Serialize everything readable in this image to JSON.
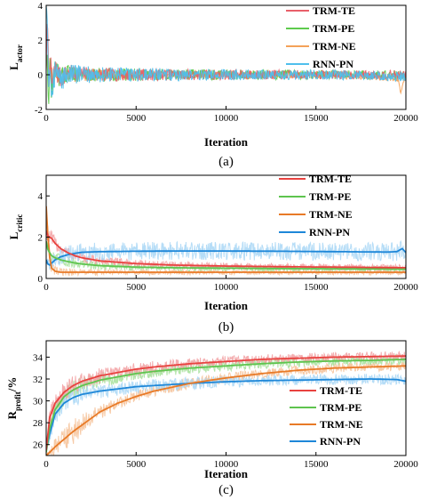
{
  "chart_data": [
    {
      "type": "line",
      "panel_label": "(a)",
      "xlabel": "Iteration",
      "ylabel_main": "L",
      "ylabel_sub": "actor",
      "ylabel_suffix": "",
      "xlim": [
        0,
        20000
      ],
      "ylim": [
        -2,
        4
      ],
      "xticks": [
        "0",
        "5000",
        "10000",
        "15000",
        "20000"
      ],
      "xtick_values": [
        0,
        5000,
        10000,
        15000,
        20000
      ],
      "yticks": [
        "-2",
        "0",
        "2",
        "4"
      ],
      "ytick_values": [
        -2,
        0,
        2,
        4
      ],
      "legend_position": "top-right",
      "noise_order": [
        2,
        1,
        0,
        3
      ],
      "series": [
        {
          "name": "TRM-TE",
          "color": "#e8606a",
          "noise_color": "#e8606a",
          "x": [
            0,
            50,
            100,
            150,
            200,
            300,
            500,
            800,
            1200,
            2000,
            3000,
            5000,
            8000,
            12000,
            16000,
            20000
          ],
          "y": [
            0.3,
            3.0,
            2.5,
            -1.2,
            1.2,
            -0.6,
            0.3,
            -0.2,
            0.1,
            0.05,
            0.0,
            0.0,
            0.0,
            0.0,
            0.0,
            0.0
          ],
          "noise_amp": [
            0.0,
            0.0,
            0.0,
            0.0,
            0.9,
            0.8,
            0.7,
            0.6,
            0.5,
            0.45,
            0.4,
            0.35,
            0.32,
            0.28,
            0.25,
            0.25
          ]
        },
        {
          "name": "TRM-PE",
          "color": "#5ecb4d",
          "noise_color": "#5ecb4d",
          "x": [
            0,
            50,
            100,
            150,
            200,
            300,
            500,
            800,
            1200,
            2000,
            3000,
            5000,
            8000,
            12000,
            16000,
            20000
          ],
          "y": [
            0.5,
            1.5,
            -1.0,
            -1.8,
            0.8,
            -0.8,
            0.2,
            -0.2,
            0.1,
            0.0,
            0.0,
            0.0,
            0.0,
            0.0,
            0.0,
            0.0
          ],
          "noise_amp": [
            0.0,
            0.0,
            0.0,
            0.0,
            0.9,
            0.8,
            0.7,
            0.6,
            0.5,
            0.45,
            0.4,
            0.35,
            0.32,
            0.28,
            0.25,
            0.25
          ]
        },
        {
          "name": "TRM-NE",
          "color": "#f4a259",
          "noise_color": "#f4a259",
          "x": [
            0,
            50,
            100,
            150,
            200,
            300,
            500,
            800,
            1200,
            2000,
            3000,
            5000,
            8000,
            12000,
            16000,
            19600,
            19700,
            20000
          ],
          "y": [
            0.2,
            1.0,
            0.5,
            -0.5,
            0.4,
            -0.3,
            0.2,
            -0.1,
            0.0,
            0.0,
            0.0,
            0.0,
            0.0,
            0.0,
            0.0,
            -0.2,
            -1.1,
            0.0
          ],
          "noise_amp": [
            0.0,
            0.0,
            0.0,
            0.0,
            0.8,
            0.7,
            0.6,
            0.5,
            0.45,
            0.4,
            0.35,
            0.3,
            0.28,
            0.25,
            0.22,
            0.22,
            0.0,
            0.22
          ]
        },
        {
          "name": "RNN-PN",
          "color": "#4fbfec",
          "noise_color": "#4fbfec",
          "x": [
            0,
            50,
            100,
            150,
            200,
            300,
            500,
            800,
            1200,
            2000,
            3000,
            5000,
            8000,
            12000,
            16000,
            20000
          ],
          "y": [
            4.0,
            3.5,
            1.0,
            -1.0,
            0.8,
            -0.8,
            0.3,
            -0.3,
            0.1,
            0.0,
            0.0,
            0.0,
            0.0,
            0.0,
            0.0,
            -0.1
          ],
          "noise_amp": [
            0.0,
            0.0,
            0.0,
            0.0,
            1.0,
            0.9,
            0.8,
            0.7,
            0.6,
            0.5,
            0.45,
            0.4,
            0.35,
            0.3,
            0.28,
            0.28
          ]
        }
      ]
    },
    {
      "type": "line",
      "panel_label": "(b)",
      "xlabel": "Iteration",
      "ylabel_main": "L",
      "ylabel_sub": "critic",
      "ylabel_suffix": "",
      "xlim": [
        0,
        20000
      ],
      "ylim": [
        0,
        5
      ],
      "xticks": [
        "0",
        "5000",
        "10000",
        "15000",
        "20000"
      ],
      "xtick_values": [
        0,
        5000,
        10000,
        15000,
        20000
      ],
      "yticks": [
        "0",
        "2",
        "4"
      ],
      "ytick_values": [
        0,
        2,
        4
      ],
      "legend_position": "top-right",
      "noise_order": [
        2,
        1,
        0,
        3
      ],
      "series": [
        {
          "name": "TRM-TE",
          "color": "#e8423f",
          "noise_color": "#f2a0a2",
          "x": [
            0,
            100,
            300,
            500,
            800,
            1200,
            1600,
            2000,
            3000,
            5000,
            7000,
            10000,
            13000,
            16000,
            20000
          ],
          "y": [
            2.3,
            2.05,
            1.95,
            1.7,
            1.45,
            1.25,
            1.1,
            1.0,
            0.85,
            0.72,
            0.65,
            0.6,
            0.57,
            0.55,
            0.52
          ],
          "noise_amp": [
            0.3,
            0.35,
            0.35,
            0.35,
            0.3,
            0.3,
            0.28,
            0.25,
            0.22,
            0.2,
            0.18,
            0.17,
            0.16,
            0.15,
            0.15
          ]
        },
        {
          "name": "TRM-PE",
          "color": "#5ec44e",
          "noise_color": "#a6e19a",
          "x": [
            0,
            100,
            300,
            500,
            800,
            1200,
            1600,
            2000,
            3000,
            5000,
            7000,
            10000,
            13000,
            16000,
            20000
          ],
          "y": [
            1.8,
            1.4,
            1.1,
            1.0,
            0.9,
            0.82,
            0.75,
            0.7,
            0.62,
            0.55,
            0.52,
            0.5,
            0.48,
            0.47,
            0.45
          ],
          "noise_amp": [
            0.3,
            0.35,
            0.35,
            0.3,
            0.3,
            0.28,
            0.25,
            0.22,
            0.2,
            0.18,
            0.16,
            0.15,
            0.15,
            0.14,
            0.14
          ]
        },
        {
          "name": "TRM-NE",
          "color": "#e87a27",
          "noise_color": "#f6c196",
          "x": [
            0,
            100,
            200,
            300,
            500,
            800,
            1200,
            1600,
            2000,
            3000,
            5000,
            7000,
            10000,
            13000,
            16000,
            20000
          ],
          "y": [
            3.5,
            2.0,
            1.0,
            0.5,
            0.35,
            0.3,
            0.3,
            0.3,
            0.3,
            0.3,
            0.3,
            0.3,
            0.3,
            0.3,
            0.3,
            0.3
          ],
          "noise_amp": [
            0.5,
            0.5,
            0.4,
            0.3,
            0.25,
            0.2,
            0.2,
            0.18,
            0.16,
            0.15,
            0.14,
            0.13,
            0.12,
            0.12,
            0.12,
            0.12
          ]
        },
        {
          "name": "RNN-PN",
          "color": "#1e87d8",
          "noise_color": "#a9d7f6",
          "x": [
            0,
            100,
            200,
            300,
            500,
            800,
            1200,
            1600,
            2000,
            3000,
            5000,
            7000,
            10000,
            13000,
            16000,
            19000,
            19500,
            19800,
            20000
          ],
          "y": [
            0.9,
            0.7,
            0.65,
            0.75,
            0.9,
            1.05,
            1.15,
            1.22,
            1.27,
            1.3,
            1.32,
            1.33,
            1.33,
            1.32,
            1.3,
            1.28,
            1.3,
            1.45,
            1.25
          ],
          "noise_amp": [
            0.2,
            0.25,
            0.3,
            0.35,
            0.4,
            0.45,
            0.45,
            0.45,
            0.45,
            0.45,
            0.45,
            0.45,
            0.45,
            0.45,
            0.45,
            0.45,
            0.45,
            0.45,
            0.4
          ]
        }
      ]
    },
    {
      "type": "line",
      "panel_label": "(c)",
      "xlabel": "Iteration",
      "ylabel_main": "R",
      "ylabel_sub": "profit",
      "ylabel_suffix": "/%",
      "xlim": [
        0,
        20000
      ],
      "ylim": [
        25,
        35.5
      ],
      "xticks": [
        "0",
        "5000",
        "10000",
        "15000",
        "20000"
      ],
      "xtick_values": [
        0,
        5000,
        10000,
        15000,
        20000
      ],
      "yticks": [
        "26",
        "28",
        "30",
        "32",
        "34"
      ],
      "ytick_values": [
        26,
        28,
        30,
        32,
        34
      ],
      "legend_position": "center-right",
      "noise_order": [
        2,
        1,
        0,
        3
      ],
      "series": [
        {
          "name": "TRM-TE",
          "color": "#e8423f",
          "noise_color": "#f2a0a2",
          "x": [
            0,
            200,
            500,
            1000,
            1500,
            2000,
            3000,
            4000,
            5000,
            6000,
            8000,
            10000,
            12000,
            14000,
            16000,
            18000,
            20000
          ],
          "y": [
            25.5,
            28.5,
            29.8,
            30.8,
            31.4,
            31.8,
            32.3,
            32.6,
            32.9,
            33.1,
            33.4,
            33.6,
            33.8,
            33.9,
            34.0,
            34.05,
            34.1
          ],
          "noise_amp": [
            0.3,
            0.8,
            0.9,
            0.9,
            0.9,
            0.8,
            0.7,
            0.6,
            0.6,
            0.55,
            0.5,
            0.5,
            0.45,
            0.45,
            0.45,
            0.45,
            0.45
          ]
        },
        {
          "name": "TRM-PE",
          "color": "#5ec44e",
          "noise_color": "#a6e19a",
          "x": [
            0,
            200,
            500,
            1000,
            1500,
            2000,
            3000,
            4000,
            5000,
            6000,
            8000,
            10000,
            12000,
            14000,
            16000,
            18000,
            20000
          ],
          "y": [
            25.3,
            27.5,
            29.2,
            30.4,
            31.0,
            31.4,
            31.9,
            32.2,
            32.5,
            32.7,
            33.0,
            33.2,
            33.4,
            33.55,
            33.65,
            33.7,
            33.8
          ],
          "noise_amp": [
            0.3,
            0.8,
            0.9,
            0.9,
            0.9,
            0.8,
            0.7,
            0.6,
            0.6,
            0.55,
            0.5,
            0.5,
            0.45,
            0.45,
            0.45,
            0.45,
            0.45
          ]
        },
        {
          "name": "TRM-NE",
          "color": "#e87a27",
          "noise_color": "#f6c196",
          "x": [
            0,
            200,
            500,
            1000,
            1500,
            2000,
            2500,
            3000,
            4000,
            5000,
            6000,
            8000,
            10000,
            12000,
            14000,
            16000,
            18000,
            20000
          ],
          "y": [
            25.0,
            25.3,
            25.8,
            26.5,
            27.2,
            27.8,
            28.4,
            29.0,
            29.8,
            30.4,
            30.9,
            31.6,
            32.1,
            32.5,
            32.8,
            33.0,
            33.1,
            33.2
          ],
          "noise_amp": [
            0.2,
            0.4,
            0.8,
            1.2,
            1.2,
            1.0,
            0.8,
            0.7,
            0.6,
            0.55,
            0.5,
            0.5,
            0.45,
            0.45,
            0.45,
            0.45,
            0.45,
            0.45
          ]
        },
        {
          "name": "RNN-PN",
          "color": "#1e87d8",
          "noise_color": "#a9d7f6",
          "x": [
            0,
            200,
            500,
            1000,
            1500,
            2000,
            3000,
            4000,
            5000,
            6000,
            8000,
            10000,
            12000,
            14000,
            16000,
            18000,
            19500,
            20000
          ],
          "y": [
            25.5,
            27.0,
            28.8,
            29.8,
            30.3,
            30.6,
            30.9,
            31.1,
            31.3,
            31.4,
            31.6,
            31.75,
            31.85,
            31.9,
            31.95,
            32.0,
            31.95,
            31.8
          ],
          "noise_amp": [
            0.3,
            0.8,
            0.9,
            0.9,
            0.85,
            0.8,
            0.7,
            0.65,
            0.6,
            0.6,
            0.55,
            0.55,
            0.5,
            0.5,
            0.5,
            0.5,
            0.5,
            0.5
          ]
        }
      ]
    }
  ]
}
